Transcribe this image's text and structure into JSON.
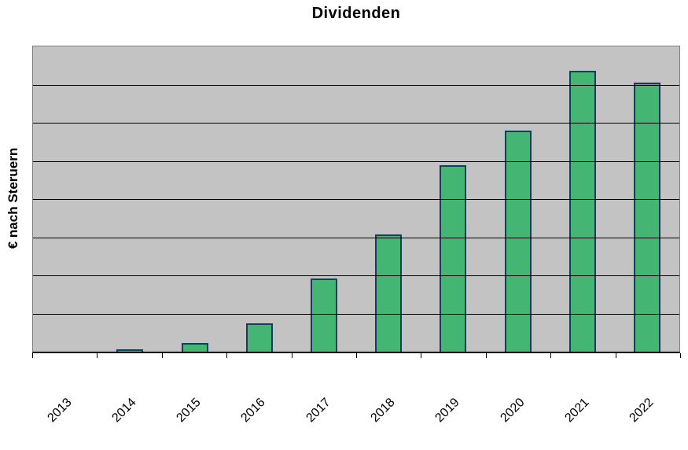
{
  "chart_data": {
    "type": "bar",
    "title": "Dividenden",
    "xlabel": "",
    "ylabel": "€ nach Steruern",
    "categories": [
      "2013",
      "2014",
      "2015",
      "2016",
      "2017",
      "2018",
      "2019",
      "2020",
      "2021",
      "2022"
    ],
    "values": [
      0,
      0.07,
      0.23,
      0.74,
      1.92,
      3.07,
      4.89,
      5.79,
      7.36,
      7.05
    ],
    "ylim": [
      0,
      8
    ],
    "gridline_step": 1,
    "gridlines": "horizontal",
    "y_tick_labels_visible": false,
    "y_axis_units": "unlabeled",
    "legend": "none",
    "x_tick_rotation_deg": 45,
    "colors": {
      "background": "#FFFFFF",
      "plot_background": "#C3C3C3",
      "plot_border": "#7E7E7E",
      "gridline": "#000000",
      "axis_line": "#000000",
      "bar_fill": "#45B573",
      "bar_border": "#1B3A5F",
      "text": "#000000"
    }
  }
}
